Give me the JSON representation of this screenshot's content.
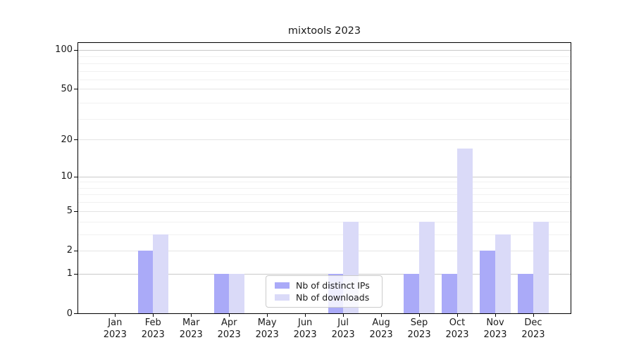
{
  "chart_data": {
    "type": "bar",
    "title": "mixtools 2023",
    "categories": [
      "Jan",
      "Feb",
      "Mar",
      "Apr",
      "May",
      "Jun",
      "Jul",
      "Aug",
      "Sep",
      "Oct",
      "Nov",
      "Dec"
    ],
    "category_year": "2023",
    "series": [
      {
        "key": "distinct-ips",
        "name": "Nb of distinct IPs",
        "color": "#aaaaf8",
        "values": [
          0,
          2,
          0,
          1,
          0,
          0,
          1,
          0,
          1,
          1,
          2,
          1
        ]
      },
      {
        "key": "downloads",
        "name": "Nb of downloads",
        "color": "#dadaf8",
        "values": [
          0,
          3,
          0,
          1,
          0,
          0,
          4,
          0,
          4,
          17,
          3,
          4
        ]
      }
    ],
    "yscale": "log10(1+v)",
    "yticks": [
      0,
      1,
      2,
      5,
      10,
      20,
      50,
      100
    ],
    "major_yticks": [
      1,
      10,
      100
    ],
    "minor_yticks": [
      3,
      4,
      6,
      7,
      8,
      9,
      29,
      39,
      59,
      69,
      79,
      89
    ],
    "ylim": [
      0,
      112
    ],
    "grid": true,
    "legend_position": "lower center",
    "colors": {
      "axis": "#000000",
      "major_grid": "#c9c9c9",
      "tick_grid": "#e4e4e4",
      "minor_grid": "#f1f1f1",
      "text": "#1a1a1a"
    }
  }
}
